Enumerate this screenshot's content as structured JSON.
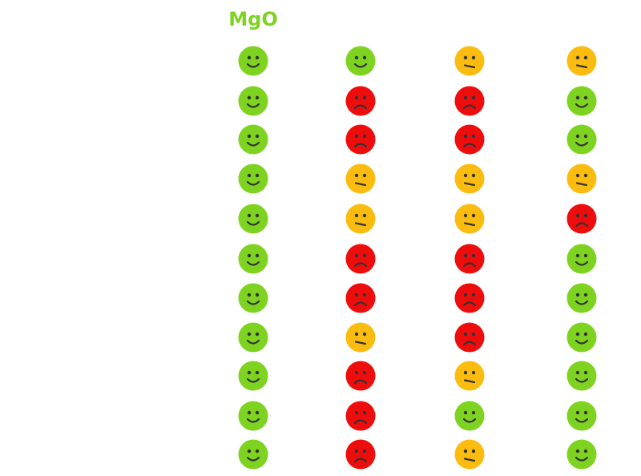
{
  "colors": {
    "good": "#7ed321",
    "neutral": "#fbbc0f",
    "bad": "#ee0d0d",
    "feature": "#333333",
    "header": "#7ed321"
  },
  "header": {
    "label": "MgO"
  },
  "rows": [
    [
      "good",
      "good",
      "neutral",
      "neutral"
    ],
    [
      "good",
      "bad",
      "bad",
      "good"
    ],
    [
      "good",
      "bad",
      "bad",
      "good"
    ],
    [
      "good",
      "neutral",
      "neutral",
      "neutral"
    ],
    [
      "good",
      "neutral",
      "neutral",
      "bad"
    ],
    [
      "good",
      "bad",
      "bad",
      "good"
    ],
    [
      "good",
      "bad",
      "bad",
      "good"
    ],
    [
      "good",
      "neutral",
      "bad",
      "good"
    ],
    [
      "good",
      "bad",
      "neutral",
      "good"
    ],
    [
      "good",
      "bad",
      "good",
      "good"
    ],
    [
      "good",
      "bad",
      "neutral",
      "good"
    ]
  ]
}
